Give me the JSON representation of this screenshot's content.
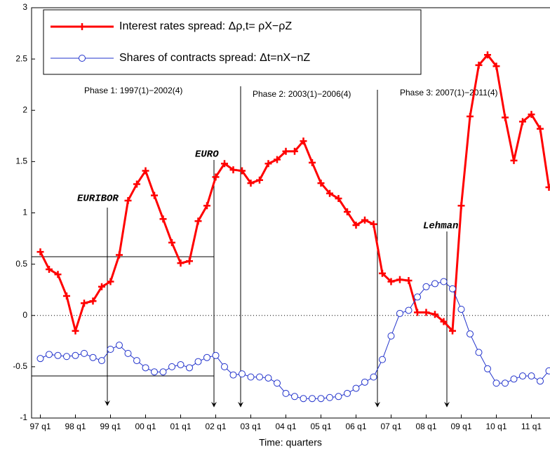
{
  "chart_data": {
    "type": "line",
    "x_label": "Time: quarters",
    "categories": [
      "97 q1",
      null,
      null,
      null,
      "98 q1",
      null,
      null,
      null,
      "99 q1",
      null,
      null,
      null,
      "00 q1",
      null,
      null,
      null,
      "01 q1",
      null,
      null,
      null,
      "02 q1",
      null,
      null,
      null,
      "03 q1",
      null,
      null,
      null,
      "04 q1",
      null,
      null,
      null,
      "05 q1",
      null,
      null,
      null,
      "06 q1",
      null,
      null,
      null,
      "07 q1",
      null,
      null,
      null,
      "08 q1",
      null,
      null,
      null,
      "09 q1",
      null,
      null,
      null,
      "10 q1",
      null,
      null,
      null,
      "11 q1",
      null,
      null
    ],
    "ylim": [
      -1,
      3
    ],
    "yticks": [
      -1,
      -0.5,
      0,
      0.5,
      1,
      1.5,
      2,
      2.5,
      3
    ],
    "series": [
      {
        "name": "Interest rates spread: Δρ,t= ρX−ρZ",
        "color": "#ff0000",
        "values": [
          0.62,
          0.45,
          0.4,
          0.19,
          -0.15,
          0.12,
          0.14,
          0.28,
          0.33,
          0.59,
          1.12,
          1.28,
          1.41,
          1.17,
          0.94,
          0.71,
          0.51,
          0.53,
          0.92,
          1.07,
          1.35,
          1.48,
          1.42,
          1.41,
          1.29,
          1.32,
          1.48,
          1.52,
          1.6,
          1.6,
          1.7,
          1.49,
          1.29,
          1.19,
          1.14,
          1.01,
          0.88,
          0.93,
          0.89,
          0.41,
          0.33,
          0.35,
          0.34,
          0.03,
          0.03,
          0.01,
          -0.06,
          -0.15,
          1.07,
          1.94,
          2.44,
          2.54,
          2.43,
          1.93,
          1.51,
          1.89,
          1.96,
          1.82,
          1.25
        ]
      },
      {
        "name": "Shares of contracts spread: Δt=nX−nZ",
        "color": "#2233cc",
        "values": [
          -0.42,
          -0.38,
          -0.39,
          -0.4,
          -0.39,
          -0.37,
          -0.41,
          -0.44,
          -0.33,
          -0.29,
          -0.37,
          -0.44,
          -0.51,
          -0.55,
          -0.55,
          -0.5,
          -0.48,
          -0.51,
          -0.45,
          -0.41,
          -0.39,
          -0.5,
          -0.58,
          -0.57,
          -0.6,
          -0.6,
          -0.61,
          -0.66,
          -0.76,
          -0.79,
          -0.81,
          -0.81,
          -0.81,
          -0.8,
          -0.79,
          -0.76,
          -0.71,
          -0.65,
          -0.6,
          -0.43,
          -0.2,
          0.02,
          0.05,
          0.18,
          0.28,
          0.31,
          0.33,
          0.26,
          0.06,
          -0.18,
          -0.36,
          -0.52,
          -0.66,
          -0.66,
          -0.62,
          -0.59,
          -0.59,
          -0.64,
          -0.54
        ]
      }
    ],
    "annotations": [
      "Phase 1: 1997(1)−2002(4)",
      "Phase 2: 2003(1)−2006(4)",
      "Phase 3: 2007(1)−2011(4)",
      "EURIBOR",
      "EURO",
      "Lehman"
    ]
  }
}
